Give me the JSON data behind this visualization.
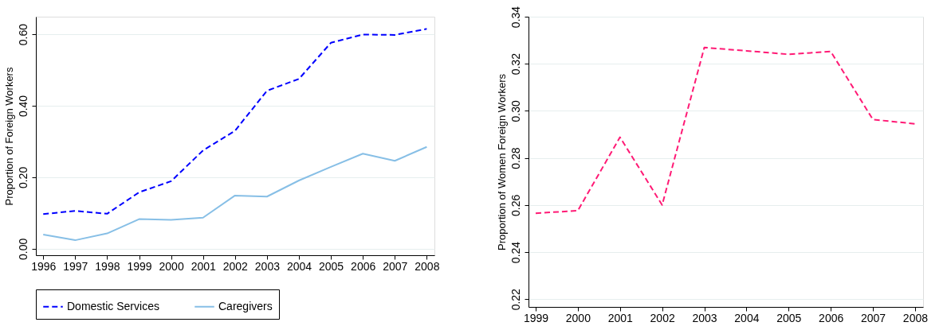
{
  "chart_data": [
    {
      "type": "line",
      "ylabel": "Proportion of Foreign Workers",
      "x": [
        1996,
        1997,
        1998,
        1999,
        2000,
        2001,
        2002,
        2003,
        2004,
        2005,
        2006,
        2007,
        2008
      ],
      "series": [
        {
          "name": "Domestic Services",
          "color": "#0000ff",
          "line_style": "dashed",
          "values": [
            0.097,
            0.106,
            0.098,
            0.158,
            0.189,
            0.275,
            0.33,
            0.442,
            0.475,
            0.576,
            0.599,
            0.598,
            0.615
          ]
        },
        {
          "name": "Caregivers",
          "color": "#87bfe6",
          "line_style": "solid",
          "values": [
            0.04,
            0.024,
            0.043,
            0.083,
            0.081,
            0.087,
            0.149,
            0.146,
            0.191,
            0.229,
            0.266,
            0.246,
            0.285
          ]
        }
      ],
      "xlim": [
        1995.77,
        2008.24
      ],
      "xticks": [
        1996,
        1997,
        1998,
        1999,
        2000,
        2001,
        2002,
        2003,
        2004,
        2005,
        2006,
        2007,
        2008
      ],
      "ylim": [
        -0.018,
        0.649
      ],
      "yticks": [
        {
          "value": 0,
          "label": "0.00"
        },
        {
          "value": 0.2,
          "label": "0.20"
        },
        {
          "value": 0.4,
          "label": "0.40"
        },
        {
          "value": 0.6,
          "label": "0.60"
        }
      ],
      "grid": "y",
      "legend": "bottom"
    },
    {
      "type": "line",
      "ylabel": "Proportion of Women Foreign Workers",
      "x": [
        1999,
        2000,
        2001,
        2002,
        2003,
        2004,
        2005,
        2006,
        2007,
        2008
      ],
      "series": [
        {
          "color": "#ff1a75",
          "line_style": "dashed",
          "values": [
            0.2565,
            0.2576,
            0.2888,
            0.26,
            0.3269,
            0.3255,
            0.324,
            0.3252,
            0.2963,
            0.2945
          ]
        }
      ],
      "xlim": [
        1998.83,
        2008.19
      ],
      "xticks": [
        1999,
        2000,
        2001,
        2002,
        2003,
        2004,
        2005,
        2006,
        2007,
        2008
      ],
      "ylim": [
        0.2167,
        0.34
      ],
      "yticks": [
        {
          "value": 0.22,
          "label": "0.22"
        },
        {
          "value": 0.24,
          "label": "0.24"
        },
        {
          "value": 0.26,
          "label": "0.26"
        },
        {
          "value": 0.28,
          "label": "0.28"
        },
        {
          "value": 0.3,
          "label": "0.30"
        },
        {
          "value": 0.32,
          "label": "0.32"
        },
        {
          "value": 0.34,
          "label": "0.34"
        }
      ],
      "grid": "y",
      "legend": false
    }
  ]
}
